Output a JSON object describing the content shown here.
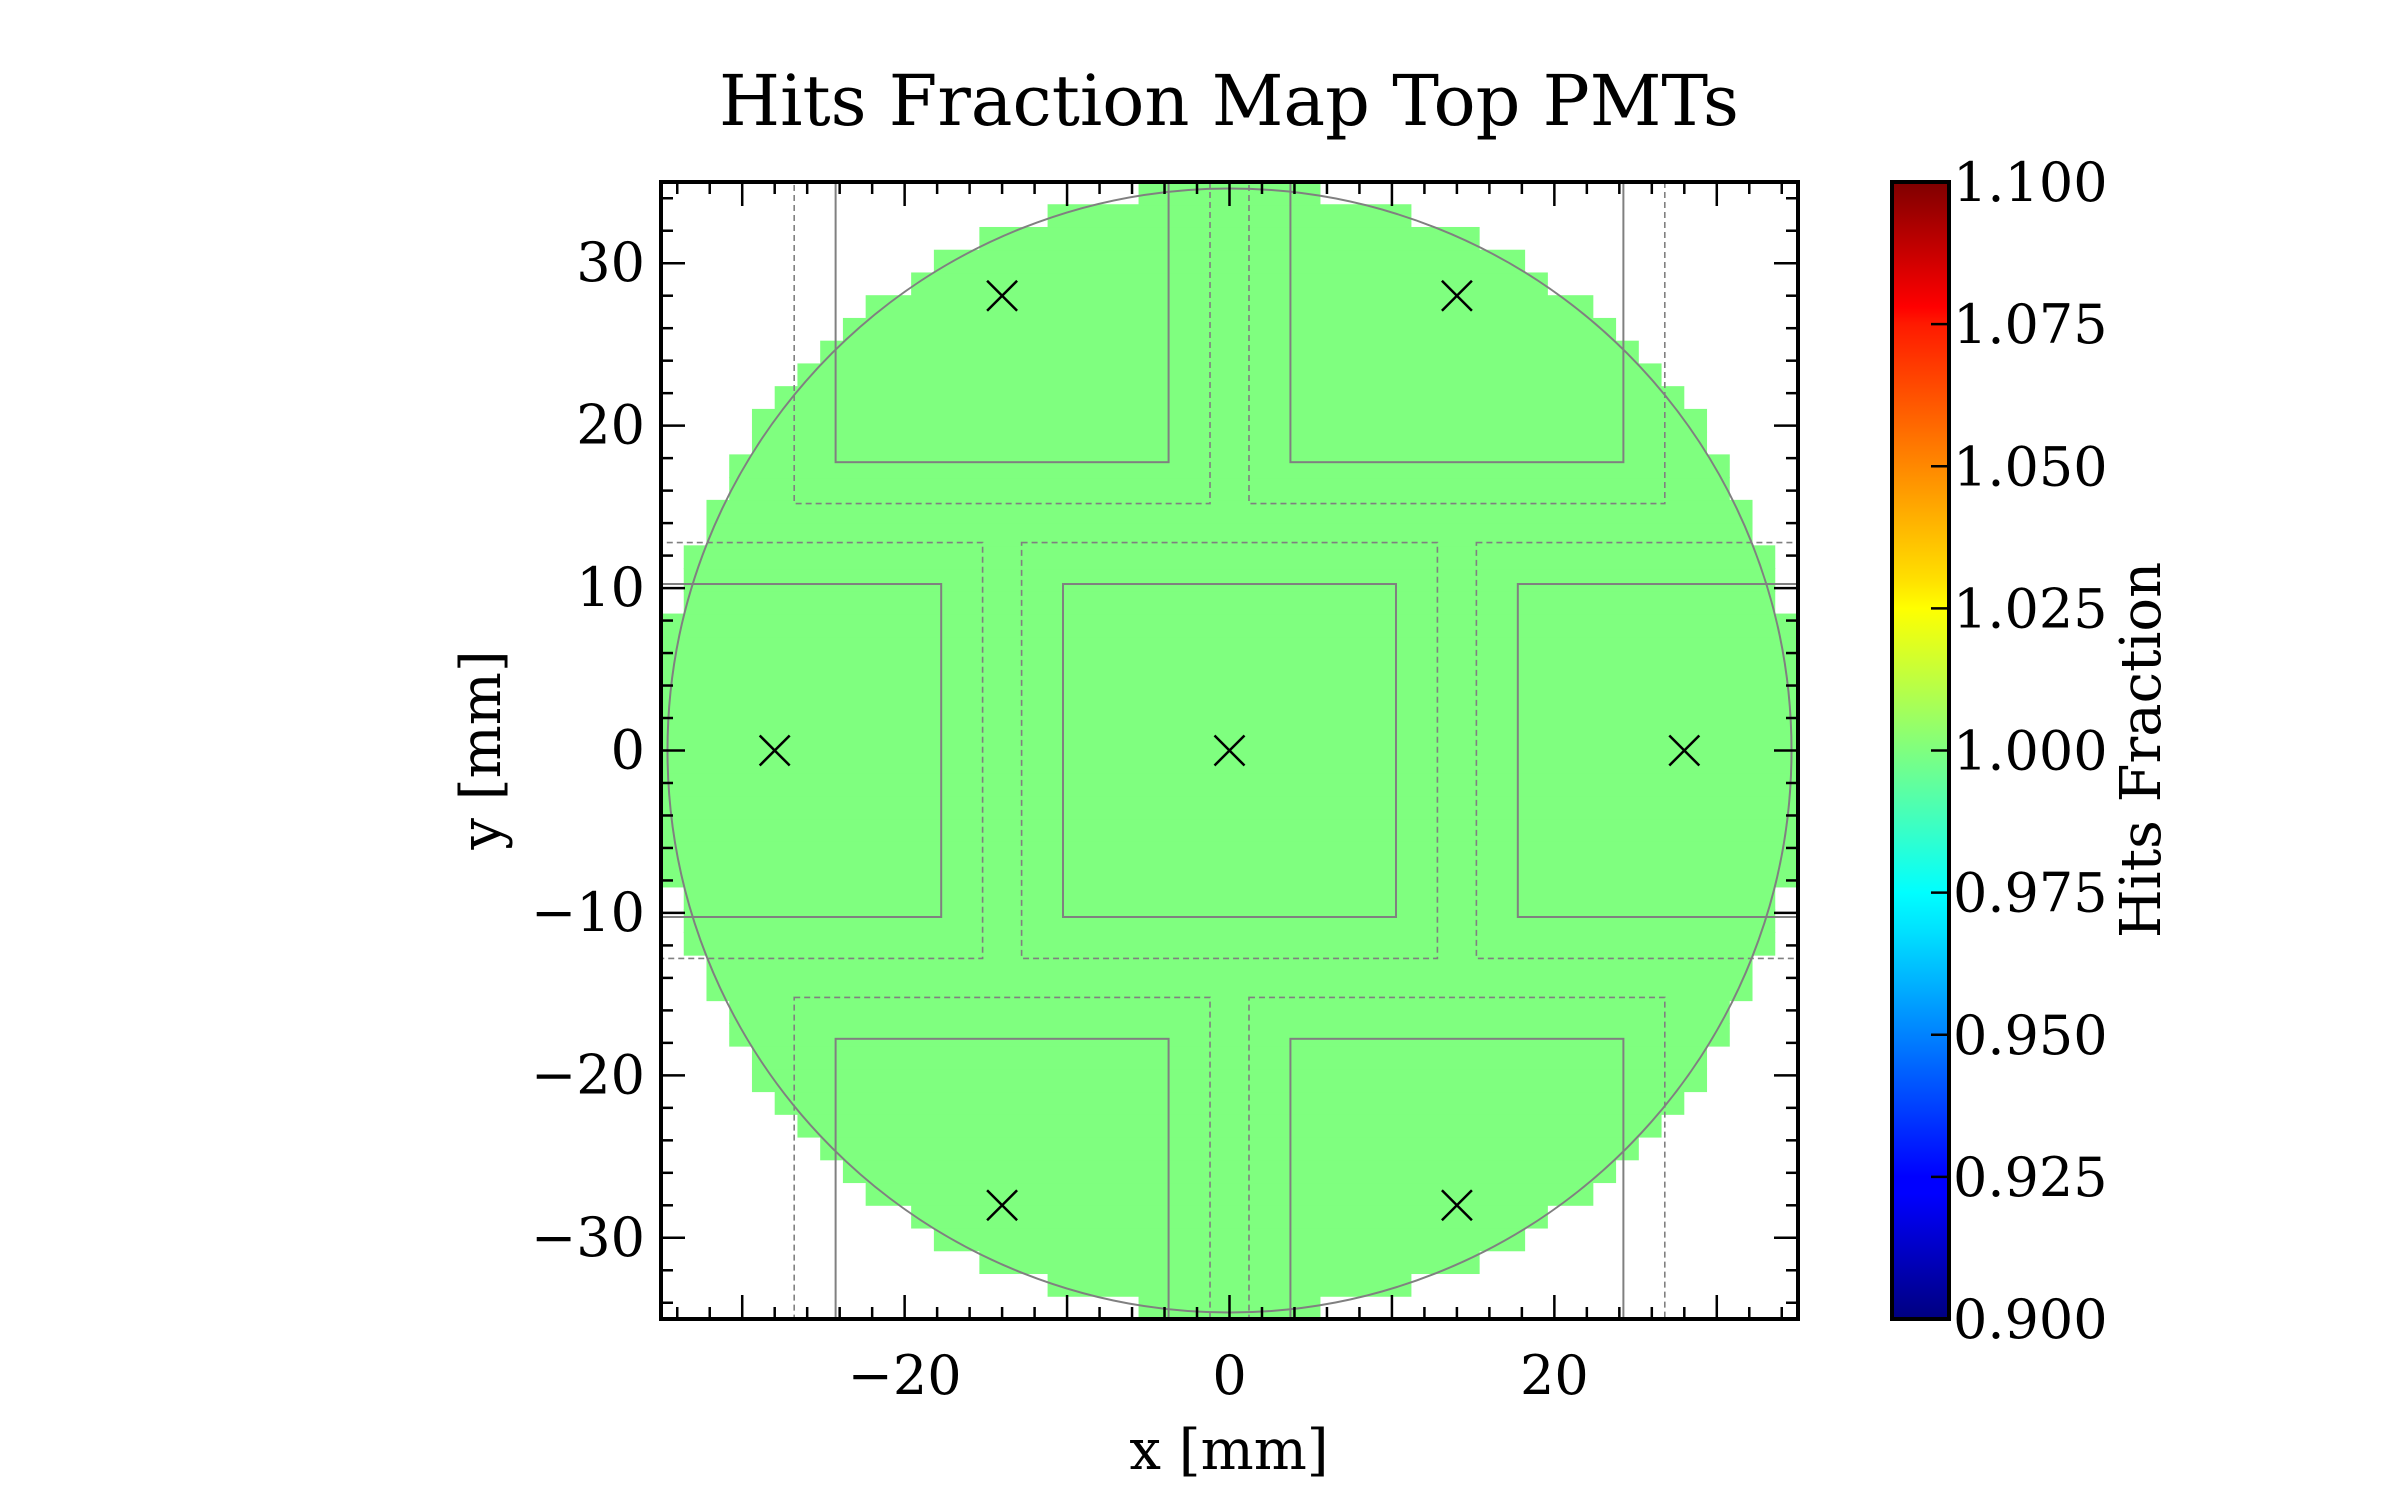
{
  "chart_data": {
    "type": "heatmap",
    "title": "Hits Fraction Map Top PMTs",
    "xlabel": "x [mm]",
    "ylabel": "y [mm]",
    "xlim": [
      -35,
      35
    ],
    "ylim": [
      -35,
      35
    ],
    "x_ticks": [
      -20,
      0,
      20
    ],
    "x_tick_labels": [
      "−20",
      "0",
      "20"
    ],
    "y_ticks": [
      -30,
      -20,
      -10,
      0,
      10,
      20,
      30
    ],
    "y_tick_labels": [
      "−30",
      "−20",
      "−10",
      "0",
      "10",
      "20",
      "30"
    ],
    "grid": false,
    "detector_radius_mm": 34.6,
    "pixel_size_mm": 1.4,
    "uniform_value": 1.0,
    "colormap": "jet",
    "fill_color": "#7fff7f",
    "outline_color": "#808080",
    "colorbar": {
      "label": "Hits Fraction",
      "min": 0.9,
      "max": 1.1,
      "ticks": [
        0.9,
        0.925,
        0.95,
        0.975,
        1.0,
        1.025,
        1.05,
        1.075,
        1.1
      ],
      "tick_labels": [
        "0.900",
        "0.925",
        "0.950",
        "0.975",
        "1.000",
        "1.025",
        "1.050",
        "1.075",
        "1.100"
      ]
    },
    "pmts": [
      {
        "x": -14,
        "y": 28
      },
      {
        "x": 14,
        "y": 28
      },
      {
        "x": -28,
        "y": 0
      },
      {
        "x": 0,
        "y": 0
      },
      {
        "x": 28,
        "y": 0
      },
      {
        "x": -14,
        "y": -28
      },
      {
        "x": 14,
        "y": -28
      }
    ],
    "pmt_active_half_width_mm": 10.25,
    "pmt_outer_half_width_mm": 12.8
  }
}
